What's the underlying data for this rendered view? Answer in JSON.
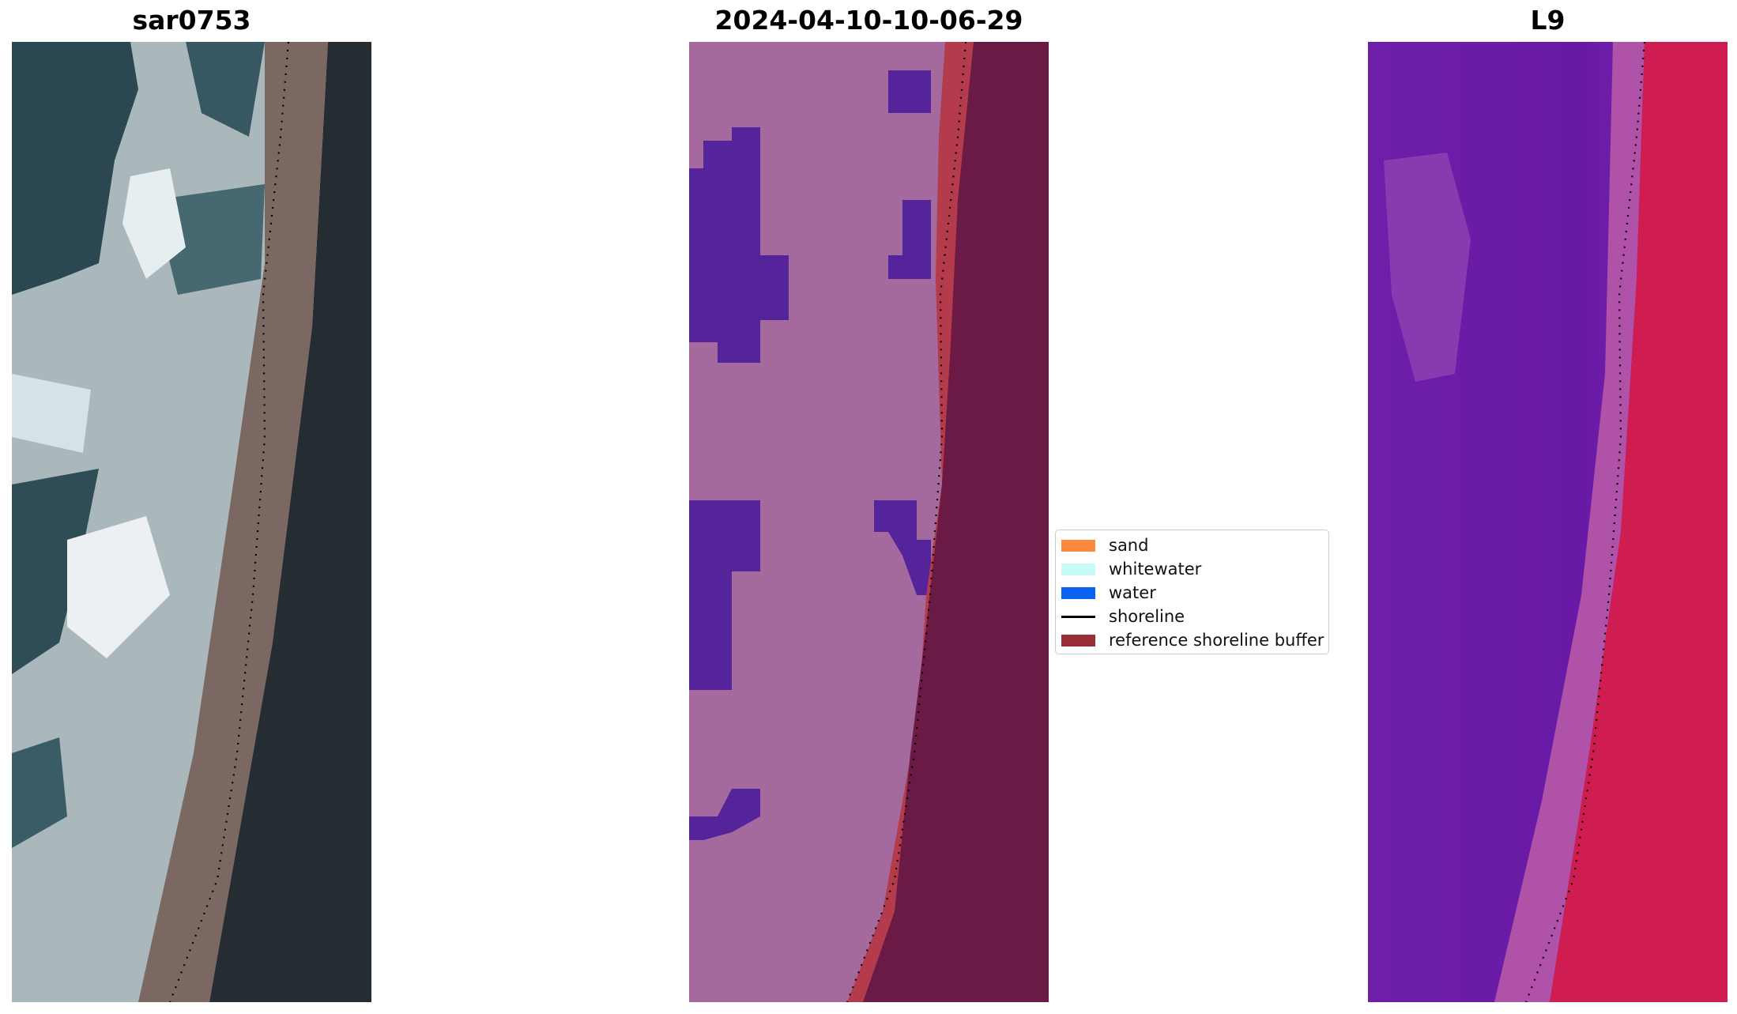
{
  "panels": [
    {
      "title": "sar0753"
    },
    {
      "title": "2024-04-10-10-06-29"
    },
    {
      "title": "L9"
    }
  ],
  "legend": {
    "items": [
      {
        "label": "sand",
        "color": "#fb8a3c"
      },
      {
        "label": "whitewater",
        "color": "#c8fbf8"
      },
      {
        "label": "water",
        "color": "#0a63f0"
      },
      {
        "label": "shoreline",
        "color": "#000000"
      },
      {
        "label": "reference shoreline buffer",
        "color": "#9a2e36"
      }
    ]
  },
  "colors": {
    "sar_surf": "#b4c3c6",
    "sar_dark_water": "#27434c",
    "sar_beach": "#7b6660",
    "sar_land": "#262d34",
    "class_background": "#a56a9d",
    "class_water": "#55249a",
    "class_buffer": "#b33b4c",
    "class_land": "#6b1a45",
    "ndwi_water": "#6a1ca6",
    "ndwi_light": "#9b47b4",
    "ndwi_land": "#d11c4f"
  }
}
